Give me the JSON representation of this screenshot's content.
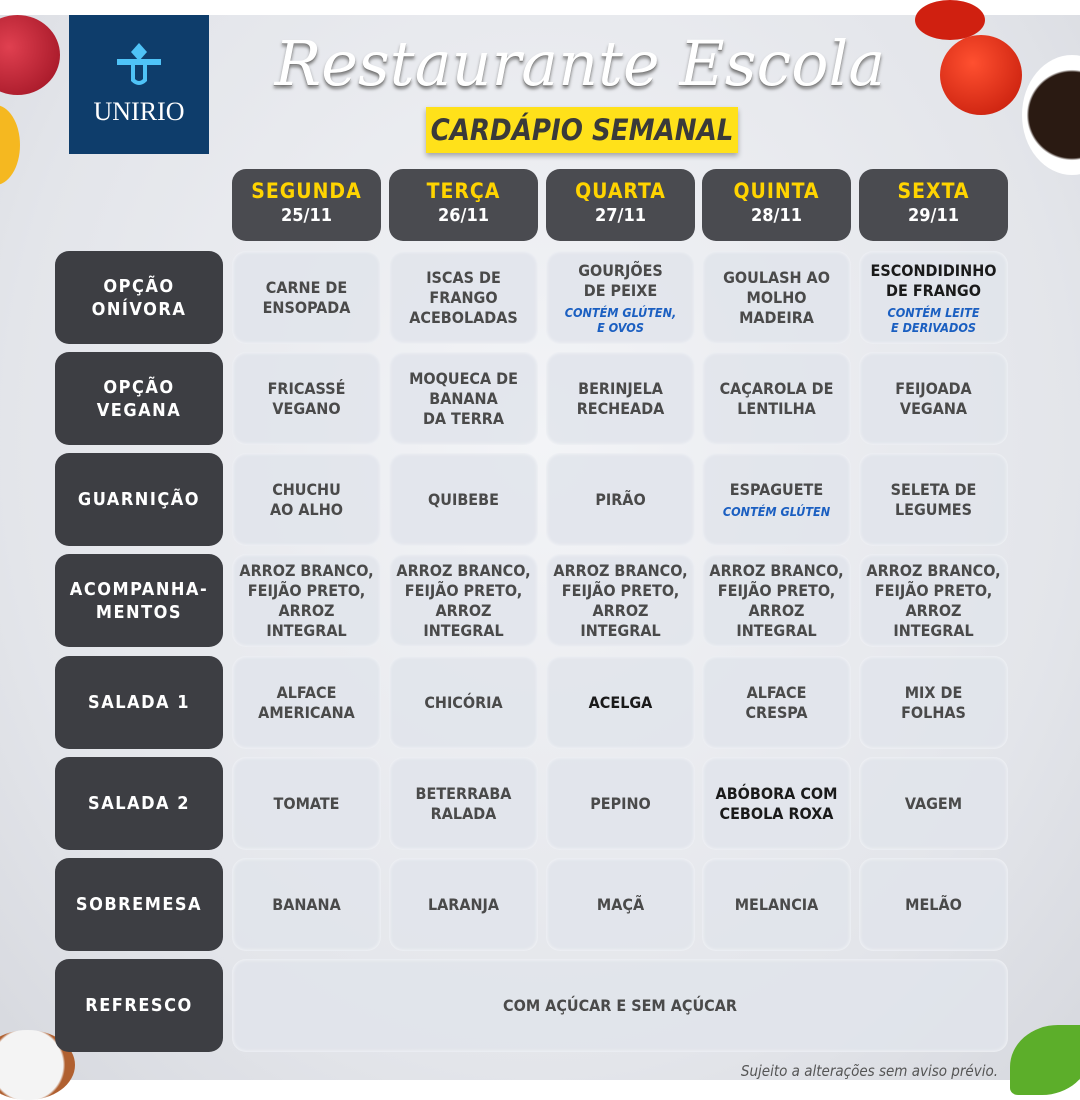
{
  "logo": {
    "text": "UNIRIO"
  },
  "title": "Restaurante Escola",
  "subtitle": "CARDÁPIO SEMANAL",
  "days": [
    {
      "name": "SEGUNDA",
      "date": "25/11"
    },
    {
      "name": "TERÇA",
      "date": "26/11"
    },
    {
      "name": "QUARTA",
      "date": "27/11"
    },
    {
      "name": "QUINTA",
      "date": "28/11"
    },
    {
      "name": "SEXTA",
      "date": "29/11"
    }
  ],
  "rows": [
    {
      "label": "OPÇÃO\nONÍVORA",
      "items": [
        {
          "text": "CARNE DE\nENSOPADA"
        },
        {
          "text": "ISCAS DE\nFRANGO\nACEBOLADAS"
        },
        {
          "text": "GOURJÕES\nDE PEIXE",
          "note": "CONTÉM GLÚTEN,\nE OVOS"
        },
        {
          "text": "GOULASH AO\nMOLHO\nMADEIRA"
        },
        {
          "text": "ESCONDIDINHO\nDE FRANGO",
          "note": "CONTÉM LEITE\nE DERIVADOS",
          "dark": true
        }
      ]
    },
    {
      "label": "OPÇÃO\nVEGANA",
      "items": [
        {
          "text": "FRICASSÉ\nVEGANO"
        },
        {
          "text": "MOQUECA DE\nBANANA\nDA TERRA"
        },
        {
          "text": "BERINJELA\nRECHEADA"
        },
        {
          "text": "CAÇAROLA DE\nLENTILHA"
        },
        {
          "text": "FEIJOADA\nVEGANA"
        }
      ]
    },
    {
      "label": "GUARNIÇÃO",
      "items": [
        {
          "text": "CHUCHU\nAO ALHO"
        },
        {
          "text": "QUIBEBE"
        },
        {
          "text": "PIRÃO"
        },
        {
          "text": "ESPAGUETE",
          "note": "CONTÉM GLÚTEN"
        },
        {
          "text": "SELETA DE\nLEGUMES"
        }
      ]
    },
    {
      "label": "ACOMPANHA-\nMENTOS",
      "items": [
        {
          "text": "ARROZ BRANCO,\nFEIJÃO PRETO,\nARROZ INTEGRAL"
        },
        {
          "text": "ARROZ BRANCO,\nFEIJÃO PRETO,\nARROZ INTEGRAL"
        },
        {
          "text": "ARROZ BRANCO,\nFEIJÃO PRETO,\nARROZ INTEGRAL"
        },
        {
          "text": "ARROZ BRANCO,\nFEIJÃO PRETO,\nARROZ INTEGRAL"
        },
        {
          "text": "ARROZ BRANCO,\nFEIJÃO PRETO,\nARROZ INTEGRAL"
        }
      ]
    },
    {
      "label": "SALADA 1",
      "items": [
        {
          "text": "ALFACE\nAMERICANA"
        },
        {
          "text": "CHICÓRIA"
        },
        {
          "text": "ACELGA",
          "dark": true
        },
        {
          "text": "ALFACE\nCRESPA"
        },
        {
          "text": "MIX DE\nFOLHAS"
        }
      ]
    },
    {
      "label": "SALADA 2",
      "items": [
        {
          "text": "TOMATE"
        },
        {
          "text": "BETERRABA\nRALADA"
        },
        {
          "text": "PEPINO"
        },
        {
          "text": "ABÓBORA COM\nCEBOLA ROXA",
          "dark": true
        },
        {
          "text": "VAGEM"
        }
      ]
    },
    {
      "label": "SOBREMESA",
      "items": [
        {
          "text": "BANANA"
        },
        {
          "text": "LARANJA"
        },
        {
          "text": "MAÇÃ"
        },
        {
          "text": "MELANCIA"
        },
        {
          "text": "MELÃO"
        }
      ]
    },
    {
      "label": "REFRESCO",
      "span": {
        "text": "COM AÇÚCAR E SEM AÇÚCAR"
      }
    }
  ],
  "footer": "Sujeito a alterações sem aviso prévio.",
  "colors": {
    "logo": "#0e3d6b",
    "header_bg": "#4a4b50",
    "day_name": "#ffd400",
    "row_label_bg": "#3d3e43",
    "note": "#1b5fc1",
    "subtitle_bg": "#ffe11a"
  }
}
